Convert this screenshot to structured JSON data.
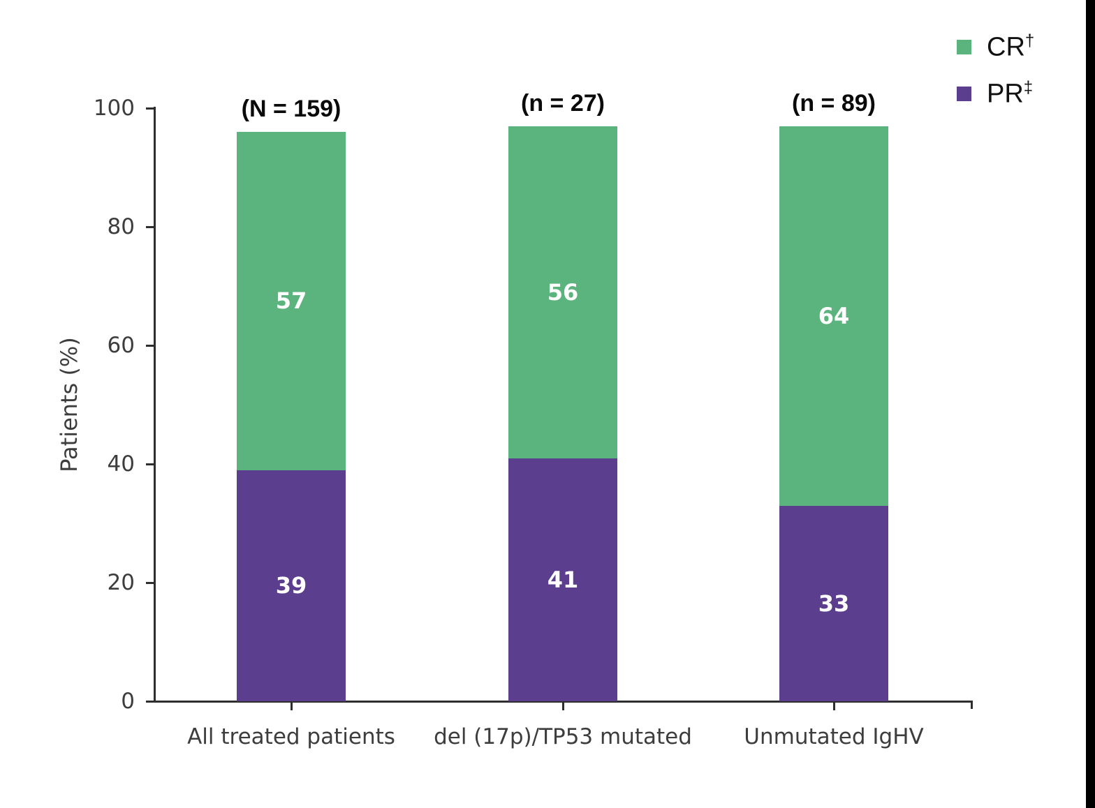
{
  "decor": {
    "right_strip_color": "#000000"
  },
  "legend": [
    {
      "label": "CR",
      "sup": "†",
      "color": "#5bb47d"
    },
    {
      "label": "PR",
      "sup": "‡",
      "color": "#5b3e8e"
    }
  ],
  "chart_data": {
    "type": "bar",
    "stacked": true,
    "title": "",
    "xlabel": "",
    "ylabel": "Patients (%)",
    "ylim": [
      0,
      100
    ],
    "yticks": [
      0,
      20,
      40,
      60,
      80,
      100
    ],
    "grid": false,
    "legend_position": "top-right",
    "categories": [
      "All treated patients",
      "del (17p)/TP53 mutated",
      "Unmutated IgHV"
    ],
    "group_counts": [
      "(N = 159)",
      "(n = 27)",
      "(n = 89)"
    ],
    "series": [
      {
        "name": "PR",
        "sup": "‡",
        "color": "#5b3e8e",
        "values": [
          39,
          41,
          33
        ]
      },
      {
        "name": "CR",
        "sup": "†",
        "color": "#5bb47d",
        "values": [
          57,
          56,
          64
        ]
      }
    ],
    "value_label_color": "#ffffff"
  }
}
